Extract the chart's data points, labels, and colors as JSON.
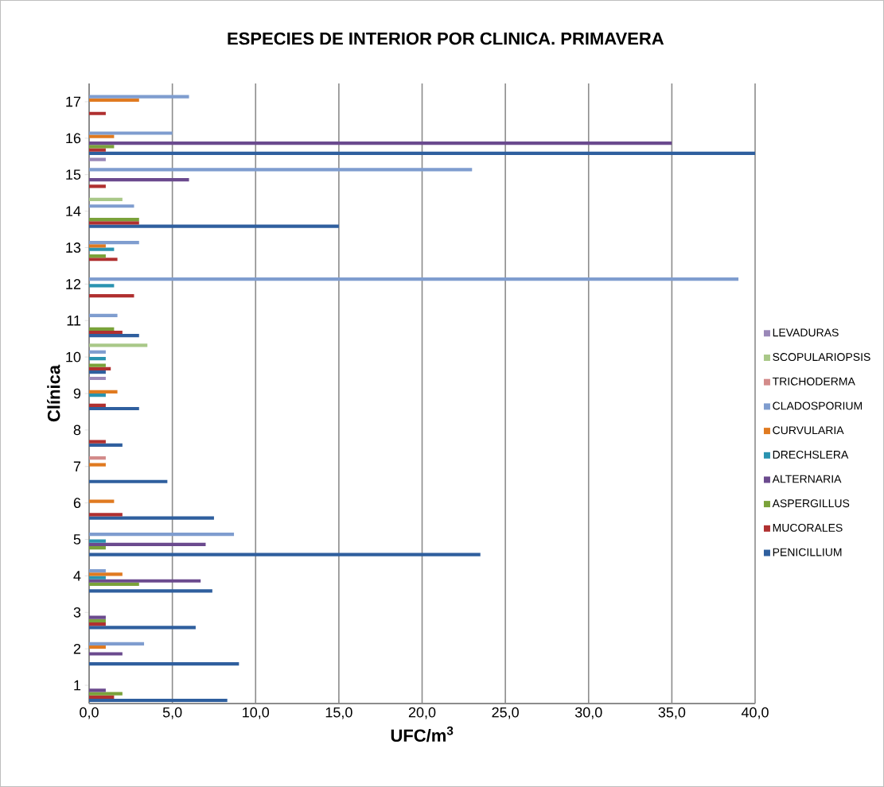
{
  "chart_data": {
    "type": "bar",
    "orientation": "horizontal",
    "title": "ESPECIES DE INTERIOR POR CLINICA. PRIMAVERA",
    "xlabel": "UFC/m$^{3}$",
    "ylabel": "Clínica",
    "categories": [
      "17",
      "16",
      "15",
      "14",
      "13",
      "12",
      "11",
      "10",
      "9",
      "8",
      "7",
      "6",
      "5",
      "4",
      "3",
      "2",
      "1"
    ],
    "series": [
      {
        "name": "PENICILLIUM",
        "color": "#2f5f9e",
        "values": [
          null,
          40,
          null,
          15,
          null,
          null,
          3,
          1,
          3,
          2,
          4.7,
          7.5,
          23.5,
          7.4,
          6.4,
          9.0,
          8.3
        ]
      },
      {
        "name": "MUCORALES",
        "color": "#b03030",
        "values": [
          1,
          1,
          1,
          3,
          1.7,
          2.7,
          2,
          1.3,
          1,
          1,
          null,
          2,
          null,
          null,
          1,
          null,
          1.5
        ]
      },
      {
        "name": "ASPERGILLUS",
        "color": "#7aa23a",
        "values": [
          null,
          1.5,
          null,
          3,
          1,
          null,
          1.5,
          1,
          null,
          null,
          null,
          null,
          1,
          3,
          1,
          null,
          2
        ]
      },
      {
        "name": "ALTERNARIA",
        "color": "#6b4a8e",
        "values": [
          null,
          35,
          6,
          null,
          null,
          null,
          null,
          null,
          null,
          null,
          null,
          null,
          7.0,
          6.7,
          1,
          2,
          1
        ]
      },
      {
        "name": "DRECHSLERA",
        "color": "#2a93b0",
        "values": [
          null,
          null,
          null,
          null,
          1.5,
          1.5,
          null,
          1,
          1,
          null,
          null,
          null,
          1,
          1,
          null,
          null,
          null
        ]
      },
      {
        "name": "CURVULARIA",
        "color": "#e07a20",
        "values": [
          3,
          1.5,
          null,
          null,
          1,
          null,
          null,
          null,
          1.7,
          null,
          1,
          1.5,
          null,
          2,
          null,
          1,
          null
        ]
      },
      {
        "name": "CLADOSPORIUM",
        "color": "#7f9dcf",
        "values": [
          6,
          5,
          23,
          2.7,
          3,
          39,
          1.7,
          1,
          null,
          null,
          null,
          null,
          8.7,
          1,
          null,
          3.3,
          null
        ]
      },
      {
        "name": "TRICHODERMA",
        "color": "#d38b8a",
        "values": [
          null,
          null,
          null,
          null,
          null,
          null,
          null,
          null,
          null,
          null,
          1,
          null,
          null,
          null,
          null,
          null,
          null
        ]
      },
      {
        "name": "SCOPULARIOPSIS",
        "color": "#a9c888",
        "values": [
          null,
          null,
          null,
          2,
          null,
          null,
          null,
          3.5,
          null,
          null,
          null,
          null,
          null,
          null,
          null,
          null,
          null
        ]
      },
      {
        "name": "LEVADURAS",
        "color": "#9a88b8",
        "values": [
          null,
          null,
          1,
          null,
          null,
          null,
          null,
          null,
          1,
          null,
          null,
          null,
          null,
          null,
          null,
          null,
          null
        ]
      }
    ],
    "xlim": [
      0,
      40
    ],
    "xticks": [
      {
        "value": 0,
        "label": "0,0"
      },
      {
        "value": 5,
        "label": "5,0"
      },
      {
        "value": 10,
        "label": "10,0"
      },
      {
        "value": 15,
        "label": "15,0"
      },
      {
        "value": 20,
        "label": "20,0"
      },
      {
        "value": 25,
        "label": "25,0"
      },
      {
        "value": 30,
        "label": "30,0"
      },
      {
        "value": 35,
        "label": "35,0"
      },
      {
        "value": 40,
        "label": "40,0"
      }
    ],
    "grid": "x",
    "legend": "right"
  }
}
